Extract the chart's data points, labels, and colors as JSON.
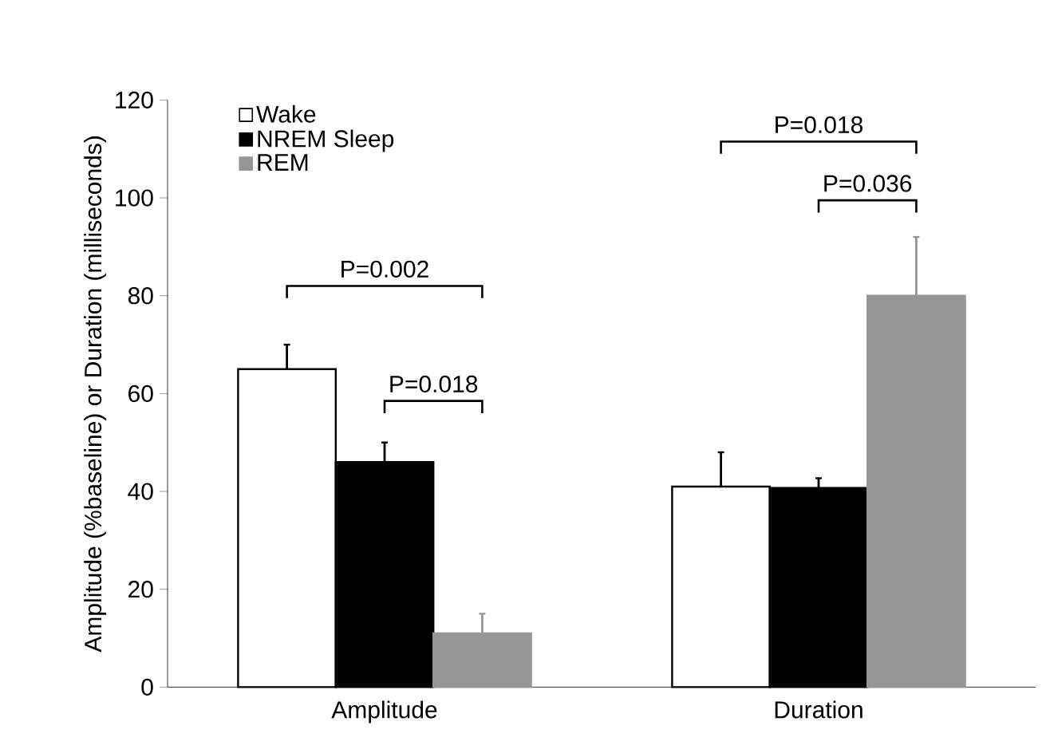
{
  "chart_data": {
    "type": "bar",
    "ylabel": "Amplitude (%baseline) or Duration (milliseconds)",
    "categories": [
      "Amplitude",
      "Duration"
    ],
    "series": [
      {
        "name": "Wake",
        "color": "#ffffff",
        "values": [
          65,
          41
        ],
        "errors": [
          5,
          7
        ]
      },
      {
        "name": "NREM Sleep",
        "color": "#000000",
        "values": [
          46,
          40.7
        ],
        "errors": [
          4,
          2
        ]
      },
      {
        "name": "REM",
        "color": "#969696",
        "values": [
          11,
          80
        ],
        "errors": [
          4,
          12
        ]
      }
    ],
    "ylim": [
      0,
      120
    ],
    "yticks": [
      0,
      20,
      40,
      60,
      80,
      100,
      120
    ],
    "legend": "top left",
    "grid": false,
    "annotations": [
      "P=0.002",
      "P=0.018",
      "P=0.018",
      "P=0.036"
    ]
  }
}
